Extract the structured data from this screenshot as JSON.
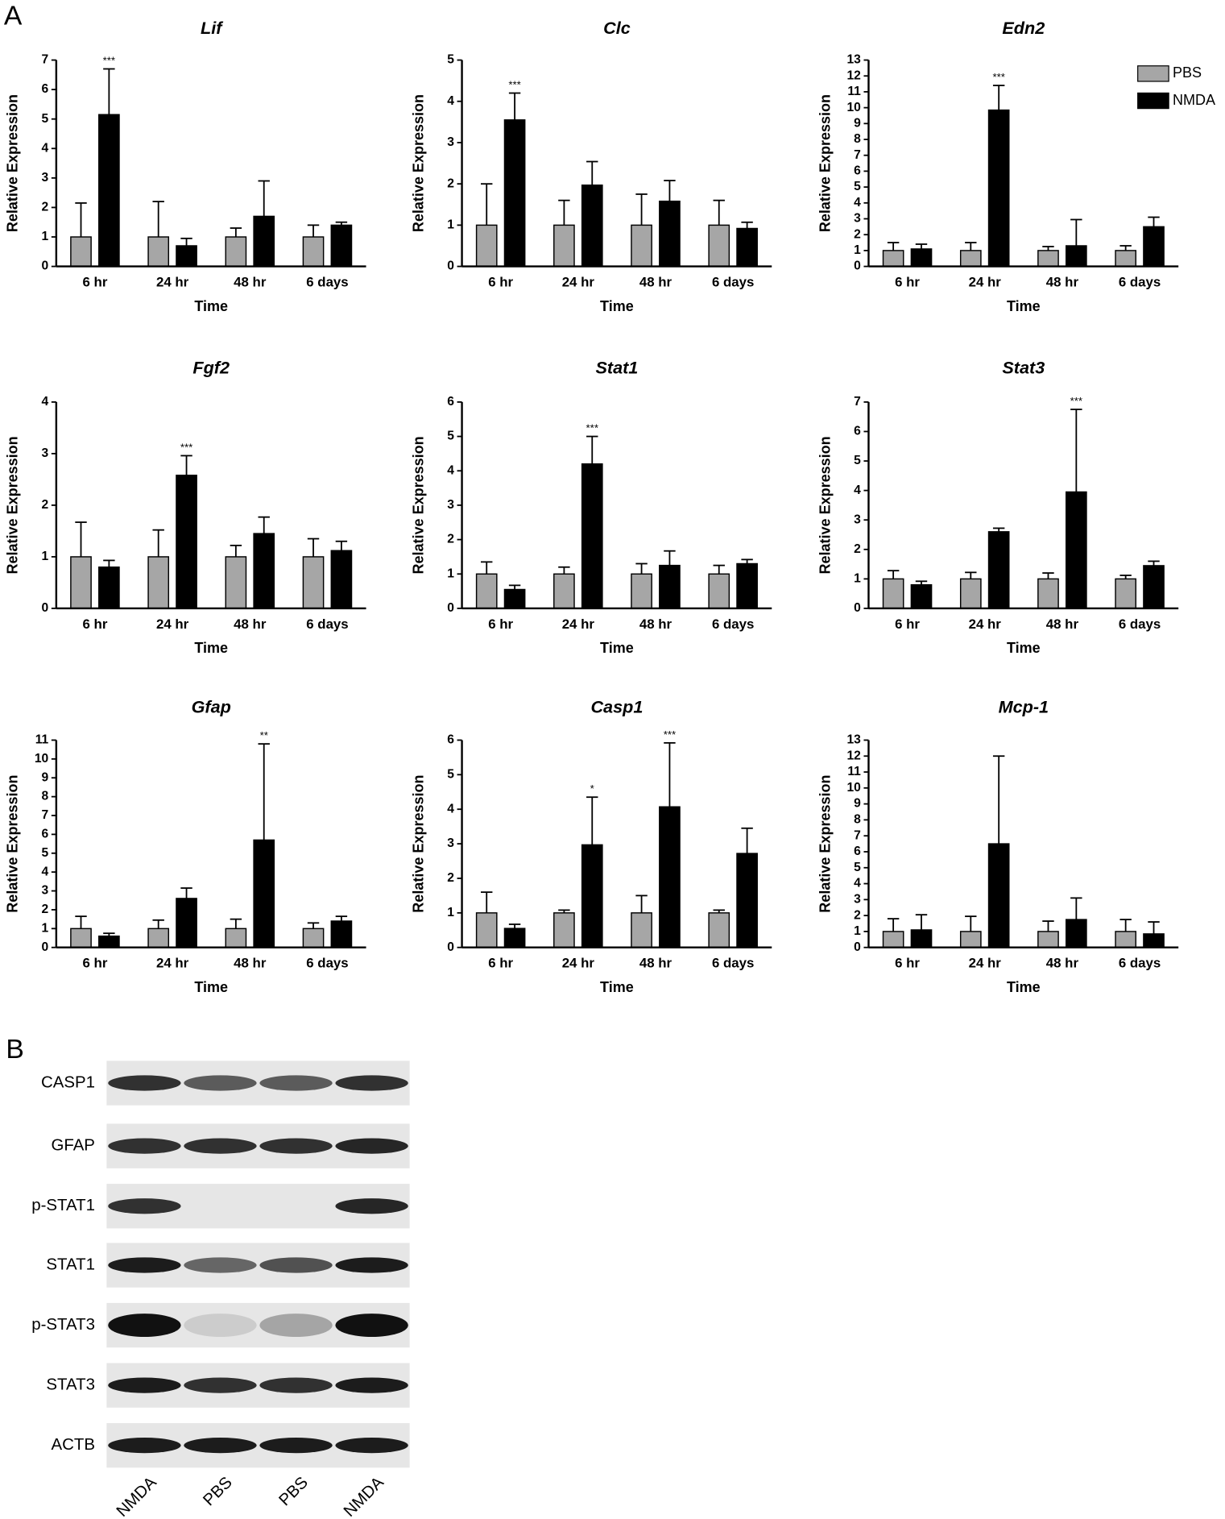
{
  "panel_labels": [
    "A",
    "B"
  ],
  "chart_data": [
    {
      "type": "bar",
      "title": "Lif",
      "xlabel": "Time",
      "ylabel": "Relative Expression",
      "categories": [
        "6 hr",
        "24 hr",
        "48 hr",
        "6 days"
      ],
      "ylim": [
        0,
        7
      ],
      "yticks": [
        0,
        1,
        2,
        3,
        4,
        5,
        6,
        7
      ],
      "series": [
        {
          "color": "#a6a6a6",
          "values": [
            1,
            1,
            1,
            1
          ],
          "errors": [
            1.15,
            1.2,
            0.3,
            0.4
          ]
        },
        {
          "color": "#000000",
          "values": [
            5.15,
            0.7,
            1.7,
            1.4
          ],
          "errors": [
            1.55,
            0.25,
            1.2,
            0.1
          ],
          "significance": [
            "***",
            null,
            null,
            null
          ]
        }
      ]
    },
    {
      "type": "bar",
      "title": "Clc",
      "xlabel": "Time",
      "ylabel": "Relative Expression",
      "categories": [
        "6 hr",
        "24 hr",
        "48 hr",
        "6 days"
      ],
      "ylim": [
        0,
        5
      ],
      "yticks": [
        0,
        1,
        2,
        3,
        4,
        5
      ],
      "series": [
        {
          "color": "#a6a6a6",
          "values": [
            1,
            1,
            1,
            1
          ],
          "errors": [
            1.0,
            0.6,
            0.75,
            0.6
          ]
        },
        {
          "color": "#000000",
          "values": [
            3.55,
            1.97,
            1.58,
            0.92
          ],
          "errors": [
            0.65,
            0.57,
            0.5,
            0.15
          ],
          "significance": [
            "***",
            null,
            null,
            null
          ]
        }
      ]
    },
    {
      "type": "bar",
      "title": "Edn2",
      "xlabel": "Time",
      "ylabel": "Relative Expression",
      "categories": [
        "6 hr",
        "24 hr",
        "48 hr",
        "6 days"
      ],
      "ylim": [
        0,
        13
      ],
      "yticks": [
        0,
        1,
        2,
        3,
        4,
        5,
        6,
        7,
        8,
        9,
        10,
        11,
        12,
        13
      ],
      "legend": "upper right",
      "series": [
        {
          "name": "PBS",
          "color": "#a6a6a6",
          "values": [
            1,
            1,
            1,
            1
          ],
          "errors": [
            0.5,
            0.5,
            0.25,
            0.3
          ]
        },
        {
          "name": "NMDA",
          "color": "#000000",
          "values": [
            1.1,
            9.85,
            1.3,
            2.5
          ],
          "errors": [
            0.3,
            1.55,
            1.65,
            0.6
          ],
          "significance": [
            null,
            "***",
            null,
            null
          ]
        }
      ]
    },
    {
      "type": "bar",
      "title": "Fgf2",
      "xlabel": "Time",
      "ylabel": "Relative Expression",
      "categories": [
        "6 hr",
        "24 hr",
        "48 hr",
        "6 days"
      ],
      "ylim": [
        0,
        4
      ],
      "yticks": [
        0,
        1,
        2,
        3,
        4
      ],
      "series": [
        {
          "color": "#a6a6a6",
          "values": [
            1,
            1,
            1,
            1
          ],
          "errors": [
            0.67,
            0.52,
            0.22,
            0.35
          ]
        },
        {
          "color": "#000000",
          "values": [
            0.8,
            2.58,
            1.45,
            1.12
          ],
          "errors": [
            0.13,
            0.38,
            0.32,
            0.18
          ],
          "significance": [
            null,
            "***",
            null,
            null
          ]
        }
      ]
    },
    {
      "type": "bar",
      "title": "Stat1",
      "xlabel": "Time",
      "ylabel": "Relative Expression",
      "categories": [
        "6 hr",
        "24 hr",
        "48 hr",
        "6 days"
      ],
      "ylim": [
        0,
        6
      ],
      "yticks": [
        0,
        1,
        2,
        3,
        4,
        5,
        6
      ],
      "series": [
        {
          "color": "#a6a6a6",
          "values": [
            1,
            1,
            1,
            1
          ],
          "errors": [
            0.35,
            0.2,
            0.3,
            0.25
          ]
        },
        {
          "color": "#000000",
          "values": [
            0.55,
            4.2,
            1.25,
            1.3
          ],
          "errors": [
            0.12,
            0.8,
            0.42,
            0.12
          ],
          "significance": [
            null,
            "***",
            null,
            null
          ]
        }
      ]
    },
    {
      "type": "bar",
      "title": "Stat3",
      "xlabel": "Time",
      "ylabel": "Relative Expression",
      "categories": [
        "6 hr",
        "24 hr",
        "48 hr",
        "6 days"
      ],
      "ylim": [
        0,
        7
      ],
      "yticks": [
        0,
        1,
        2,
        3,
        4,
        5,
        6,
        7
      ],
      "series": [
        {
          "color": "#a6a6a6",
          "values": [
            1,
            1,
            1,
            1
          ],
          "errors": [
            0.28,
            0.22,
            0.2,
            0.12
          ]
        },
        {
          "color": "#000000",
          "values": [
            0.8,
            2.6,
            3.95,
            1.45
          ],
          "errors": [
            0.12,
            0.12,
            2.8,
            0.15
          ],
          "significance": [
            null,
            null,
            "***",
            null
          ]
        }
      ]
    },
    {
      "type": "bar",
      "title": "Gfap",
      "xlabel": "Time",
      "ylabel": "Relative Expression",
      "categories": [
        "6 hr",
        "24 hr",
        "48 hr",
        "6 days"
      ],
      "ylim": [
        0,
        11
      ],
      "yticks": [
        0,
        1,
        2,
        3,
        4,
        5,
        6,
        7,
        8,
        9,
        10,
        11
      ],
      "series": [
        {
          "color": "#a6a6a6",
          "values": [
            1,
            1,
            1,
            1
          ],
          "errors": [
            0.65,
            0.45,
            0.5,
            0.3
          ]
        },
        {
          "color": "#000000",
          "values": [
            0.6,
            2.6,
            5.7,
            1.4
          ],
          "errors": [
            0.15,
            0.55,
            5.1,
            0.25
          ],
          "significance": [
            null,
            null,
            "**",
            null
          ]
        }
      ]
    },
    {
      "type": "bar",
      "title": "Casp1",
      "xlabel": "Time",
      "ylabel": "Relative Expression",
      "categories": [
        "6 hr",
        "24 hr",
        "48 hr",
        "6 days"
      ],
      "ylim": [
        0,
        6
      ],
      "yticks": [
        0,
        1,
        2,
        3,
        4,
        5,
        6
      ],
      "series": [
        {
          "color": "#a6a6a6",
          "values": [
            1,
            1,
            1,
            1
          ],
          "errors": [
            0.6,
            0.08,
            0.5,
            0.08
          ]
        },
        {
          "color": "#000000",
          "values": [
            0.55,
            2.97,
            4.07,
            2.72
          ],
          "errors": [
            0.12,
            1.38,
            1.85,
            0.73
          ],
          "significance": [
            null,
            "*",
            "***",
            null
          ]
        }
      ]
    },
    {
      "type": "bar",
      "title": "Mcp-1",
      "xlabel": "Time",
      "ylabel": "Relative Expression",
      "categories": [
        "6 hr",
        "24 hr",
        "48 hr",
        "6 days"
      ],
      "ylim": [
        0,
        13
      ],
      "yticks": [
        0,
        1,
        2,
        3,
        4,
        5,
        6,
        7,
        8,
        9,
        10,
        11,
        12,
        13
      ],
      "series": [
        {
          "color": "#a6a6a6",
          "values": [
            1,
            1,
            1,
            1
          ],
          "errors": [
            0.8,
            0.95,
            0.65,
            0.75
          ]
        },
        {
          "color": "#000000",
          "values": [
            1.1,
            6.5,
            1.75,
            0.85
          ],
          "errors": [
            0.95,
            5.5,
            1.35,
            0.75
          ]
        }
      ]
    }
  ],
  "blot": {
    "rows": [
      "CASP1",
      "GFAP",
      "p-STAT1",
      "STAT1",
      "p-STAT3",
      "STAT3",
      "ACTB"
    ],
    "lanes": [
      "NMDA",
      "PBS",
      "PBS",
      "NMDA"
    ]
  }
}
